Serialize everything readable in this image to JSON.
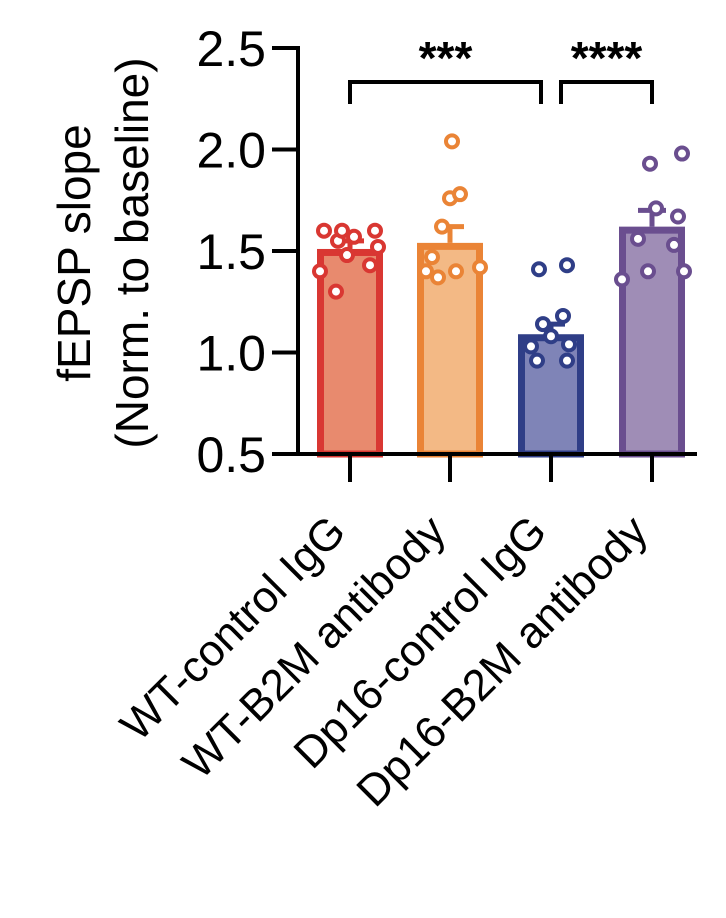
{
  "chart_data": {
    "type": "bar",
    "ylabel_lines": [
      "fEPSP slope",
      "(Norm. to baseline)"
    ],
    "xlabel": "",
    "ylim": [
      0.5,
      2.5
    ],
    "yticks": [
      0.5,
      1.0,
      1.5,
      2.0,
      2.5
    ],
    "ytick_labels": [
      "0.5",
      "1.0",
      "1.5",
      "2.0",
      "2.5"
    ],
    "grid": false,
    "categories": [
      "WT-control IgG",
      "WT-B2M antibody",
      "Dp16-control IgG",
      "Dp16-B2M antibody"
    ],
    "values": [
      1.51,
      1.54,
      1.09,
      1.62
    ],
    "sem": [
      0.04,
      0.08,
      0.05,
      0.08
    ],
    "fill_colors": [
      "#E88A6E",
      "#F3B985",
      "#7F84B7",
      "#9F8DB6"
    ],
    "edge_colors": [
      "#D93732",
      "#EA8436",
      "#2F3E87",
      "#6A4E8F"
    ],
    "points": [
      [
        1.3,
        1.4,
        1.43,
        1.48,
        1.52,
        1.55,
        1.57,
        1.6,
        1.6,
        1.6
      ],
      [
        1.37,
        1.4,
        1.4,
        1.42,
        1.47,
        1.62,
        1.76,
        1.78,
        2.04
      ],
      [
        0.96,
        0.96,
        1.03,
        1.04,
        1.08,
        1.14,
        1.18,
        1.41,
        1.43
      ],
      [
        1.36,
        1.4,
        1.4,
        1.53,
        1.56,
        1.67,
        1.71,
        1.93,
        1.98
      ]
    ],
    "significance": [
      {
        "from": 0,
        "to": 2,
        "label": "***"
      },
      {
        "from": 2,
        "to": 3,
        "label": "****"
      }
    ]
  }
}
